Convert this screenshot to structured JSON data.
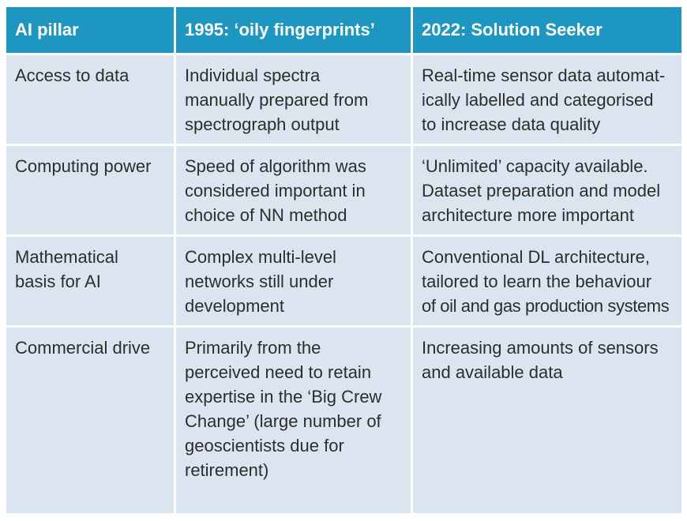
{
  "header": {
    "col1": "AI pillar",
    "col2": "1995: ‘oily fingerprints’",
    "col3": "2022: Solution Seeker"
  },
  "rows": [
    {
      "pillar": [
        "Access to data"
      ],
      "y1995": [
        "Individual spectra",
        "manually prepared from",
        "spectrograph output"
      ],
      "y2022": [
        "Real-time sensor data automat-",
        "ically labelled and categorised",
        "to increase data quality"
      ]
    },
    {
      "pillar": [
        "Computing power"
      ],
      "y1995": [
        "Speed of algorithm was",
        "considered important in",
        "choice of NN method"
      ],
      "y2022": [
        "‘Unlimited’ capacity available.",
        "Dataset preparation and model",
        "architecture more important"
      ]
    },
    {
      "pillar": [
        "Mathematical",
        "basis for AI"
      ],
      "y1995": [
        "Complex multi-level",
        "networks still under",
        "development"
      ],
      "y2022": [
        "Conventional DL architecture,",
        "tailored to learn the behaviour",
        "of oil and gas production systems"
      ]
    },
    {
      "pillar": [
        "Commercial drive"
      ],
      "y1995": [
        "Primarily from the",
        "perceived need to retain",
        "expertise in the ‘Big Crew",
        "Change’ (large number of",
        "geoscientists due for",
        "retirement)"
      ],
      "y2022": [
        "Increasing amounts of sensors",
        "and available data"
      ]
    }
  ],
  "colors": {
    "header_bg": "#1e96c2",
    "cell_bg": "#dbe5ef",
    "text": "#2d2d2d"
  }
}
